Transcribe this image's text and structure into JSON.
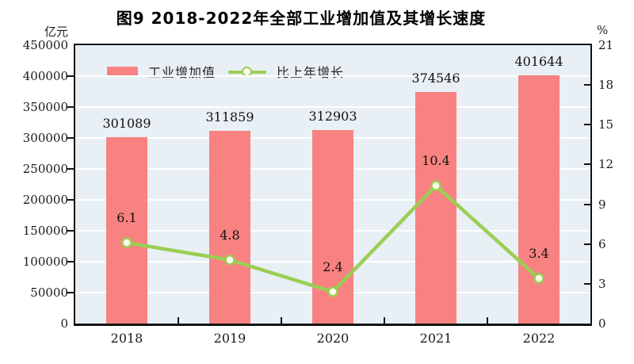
{
  "title": "图9  2018-2022年全部工业增加值及其增长速度",
  "legend": {
    "bar_label": "工业增加值",
    "line_label": "比上年增长"
  },
  "axes": {
    "left_unit": "亿元",
    "right_unit": "%",
    "left_tick_labels": [
      "450000",
      "400000",
      "350000",
      "300000",
      "250000",
      "200000",
      "150000",
      "100000",
      "50000",
      "0"
    ],
    "right_tick_labels": [
      "21",
      "18",
      "15",
      "12",
      "9",
      "6",
      "3",
      "0"
    ]
  },
  "colors": {
    "bar": "#F88281",
    "line": "#9BCE53",
    "marker_fill": "#FCFDF0",
    "plot_bg": "#E8EFF5",
    "grid": "#FFFFFF",
    "axis": "#141414"
  },
  "chart_data": {
    "type": "bar",
    "title": "图9  2018-2022年全部工业增加值及其增长速度",
    "categories": [
      "2018",
      "2019",
      "2020",
      "2021",
      "2022"
    ],
    "series": [
      {
        "name": "工业增加值",
        "type": "bar",
        "axis": "left",
        "values": [
          301089,
          311859,
          312903,
          374546,
          401644
        ],
        "labels": [
          "301089",
          "311859",
          "312903",
          "374546",
          "401644"
        ]
      },
      {
        "name": "比上年增长",
        "type": "line",
        "axis": "right",
        "values": [
          6.1,
          4.8,
          2.4,
          10.4,
          3.4
        ],
        "labels": [
          "6.1",
          "4.8",
          "2.4",
          "10.4",
          "3.4"
        ]
      }
    ],
    "left_axis": {
      "label": "亿元",
      "min": 0,
      "max": 450000,
      "step": 50000
    },
    "right_axis": {
      "label": "%",
      "min": 0,
      "max": 21,
      "step": 3
    },
    "grid": true,
    "legend_position": "top-left-inside"
  }
}
